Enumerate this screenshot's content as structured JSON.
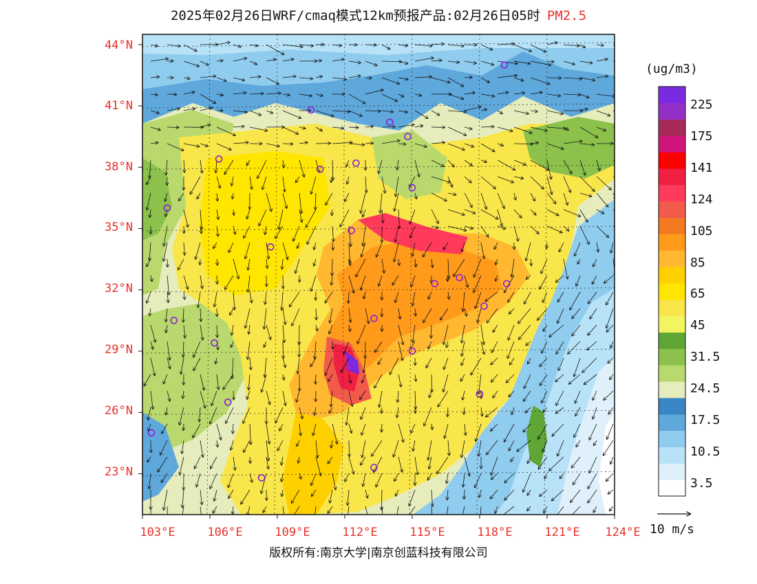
{
  "title": {
    "main": "2025年02月26日WRF/cmaq模式12km预报产品:02月26日05时",
    "pollutant": "PM2.5"
  },
  "axes": {
    "lat_labels": [
      "44°N",
      "41°N",
      "38°N",
      "35°N",
      "32°N",
      "29°N",
      "26°N",
      "23°N"
    ],
    "lon_labels": [
      "103°E",
      "106°E",
      "109°E",
      "112°E",
      "115°E",
      "118°E",
      "121°E",
      "124°E"
    ]
  },
  "colorbar": {
    "unit": "(ug/m3)",
    "labels": [
      "225",
      "175",
      "141",
      "124",
      "105",
      "85",
      "65",
      "45",
      "31.5",
      "24.5",
      "17.5",
      "10.5",
      "3.5"
    ],
    "colors": [
      "#ffffff",
      "#dff0fb",
      "#b8e2f7",
      "#90ccee",
      "#5fa8dc",
      "#3a85c4",
      "#e6ecbc",
      "#b9d96e",
      "#8cc14c",
      "#5fa636",
      "#f2f560",
      "#f9e64a",
      "#ffe600",
      "#ffd000",
      "#ffb830",
      "#ff9a1a",
      "#f47a22",
      "#f25a4a",
      "#ff3a5a",
      "#f02042",
      "#ff0000",
      "#d0147c",
      "#a82a5a",
      "#9430c8",
      "#7a2ae0"
    ]
  },
  "vector_scale": {
    "label": "10 m/s"
  },
  "copyright": "版权所有:南京大学|南京创蓝科技有限公司",
  "map_view": {
    "lon_range": [
      103,
      124
    ],
    "lat_range": [
      21,
      44.5
    ]
  }
}
